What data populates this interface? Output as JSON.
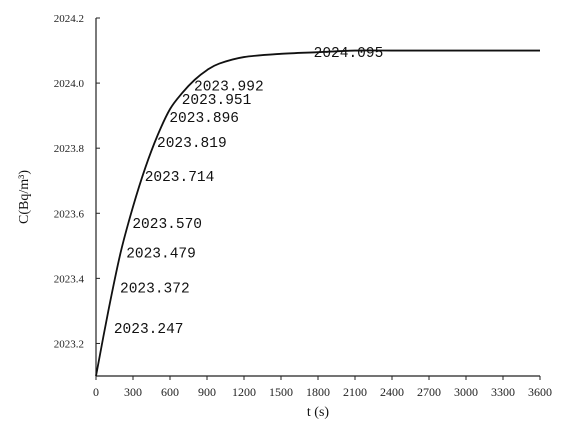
{
  "chart_data": {
    "type": "line",
    "title": "",
    "xlabel": "t (s)",
    "ylabel": "C(Bq/m³)",
    "xlim": [
      0,
      3600
    ],
    "ylim": [
      2023.1,
      2024.2
    ],
    "x_ticks": [
      "0",
      "300",
      "600",
      "900",
      "1200",
      "1500",
      "1800",
      "2100",
      "2400",
      "2700",
      "3000",
      "3300",
      "3600"
    ],
    "y_ticks": [
      "2023.2",
      "2023.4",
      "2023.6",
      "2023.8",
      "2024.0",
      "2024.2"
    ],
    "grid": false,
    "series": [
      {
        "x": [
          0,
          100,
          200,
          300,
          400,
          500,
          600,
          700,
          800,
          900,
          1000,
          1200,
          1500,
          1800,
          2100,
          2400,
          2700,
          3000,
          3300,
          3600
        ],
        "values": [
          2023.1,
          2023.3,
          2023.48,
          2023.62,
          2023.74,
          2023.84,
          2023.92,
          2023.97,
          2024.01,
          2024.04,
          2024.06,
          2024.08,
          2024.09,
          2024.095,
          2024.1,
          2024.1,
          2024.1,
          2024.1,
          2024.1,
          2024.1
        ]
      }
    ],
    "annotations": [
      {
        "text": "2023.247",
        "x": 80,
        "y": 2023.247
      },
      {
        "text": "2023.372",
        "x": 130,
        "y": 2023.372
      },
      {
        "text": "2023.479",
        "x": 180,
        "y": 2023.479
      },
      {
        "text": "2023.570",
        "x": 230,
        "y": 2023.57
      },
      {
        "text": "2023.714",
        "x": 330,
        "y": 2023.714
      },
      {
        "text": "2023.819",
        "x": 430,
        "y": 2023.819
      },
      {
        "text": "2023.896",
        "x": 530,
        "y": 2023.896
      },
      {
        "text": "2023.951",
        "x": 630,
        "y": 2023.951
      },
      {
        "text": "2023.992",
        "x": 730,
        "y": 2023.992
      },
      {
        "text": "2024.095",
        "x": 1700,
        "y": 2024.095
      }
    ]
  }
}
